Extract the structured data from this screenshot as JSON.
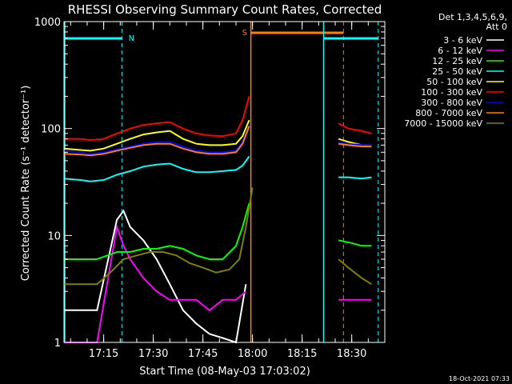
{
  "chart_data": {
    "type": "line",
    "title": "RHESSI Observing Summary Count Rates, Corrected",
    "xlabel": "Start Time (08-May-03 17:03:02)",
    "ylabel": "Corrected Count Rate (s⁻¹ detector⁻¹)",
    "yscale": "log",
    "ylim": [
      1,
      1000
    ],
    "xlim_minutes": [
      0,
      97
    ],
    "x_ticks": [
      {
        "label": "17:15",
        "min": 12
      },
      {
        "label": "17:30",
        "min": 27
      },
      {
        "label": "17:45",
        "min": 42
      },
      {
        "label": "18:00",
        "min": 57
      },
      {
        "label": "18:15",
        "min": 72
      },
      {
        "label": "18:30",
        "min": 87
      }
    ],
    "y_ticks": [
      {
        "label": "1",
        "value": 1
      },
      {
        "label": "10",
        "value": 10
      },
      {
        "label": "100",
        "value": 100
      },
      {
        "label": "1000",
        "value": 1000
      }
    ],
    "legend_header": [
      "Det 1,3,4,5,6,9,",
      "Att 0"
    ],
    "series": [
      {
        "name": "3 - 6 keV",
        "color": "#ffffff",
        "x": [
          0,
          10,
          16,
          18,
          20,
          24,
          28,
          32,
          36,
          40,
          44,
          48,
          52,
          55
        ],
        "y": [
          2.0,
          2.0,
          14,
          17,
          12,
          9,
          6,
          3.5,
          2.0,
          1.5,
          1.2,
          1.1,
          1.0,
          3.5
        ]
      },
      {
        "name": "6 - 12 keV",
        "color": "#ff00ff",
        "x": [
          0,
          10,
          16,
          18,
          20,
          24,
          28,
          32,
          36,
          40,
          44,
          48,
          52,
          55,
          83,
          87,
          90,
          93
        ],
        "y": [
          1.0,
          1.0,
          12,
          8,
          6,
          4,
          3,
          2.5,
          2.5,
          2.5,
          2.0,
          2.5,
          2.5,
          3.0,
          2.5,
          2.5,
          2.5,
          2.5
        ]
      },
      {
        "name": "12 - 25 keV",
        "color": "#00ff00",
        "x": [
          0,
          10,
          16,
          20,
          24,
          28,
          32,
          36,
          40,
          44,
          48,
          52,
          54,
          56,
          83,
          87,
          90,
          93
        ],
        "y": [
          6.0,
          6.0,
          7.0,
          7.0,
          7.5,
          7.5,
          8.0,
          7.5,
          6.5,
          6.0,
          6.0,
          8.0,
          12,
          20,
          9.0,
          8.5,
          8.0,
          8.0
        ]
      },
      {
        "name": "25 - 50 keV",
        "color": "#00ffff",
        "x": [
          0,
          5,
          8,
          12,
          16,
          20,
          24,
          28,
          32,
          36,
          40,
          44,
          48,
          52,
          54,
          56,
          83,
          86,
          90,
          93
        ],
        "y": [
          34,
          33,
          32,
          33,
          37,
          40,
          44,
          46,
          47,
          42,
          39,
          39,
          40,
          41,
          45,
          55,
          35,
          35,
          34,
          35
        ]
      },
      {
        "name": "50 - 100 keV",
        "color": "#ffff00",
        "x": [
          0,
          5,
          8,
          12,
          16,
          20,
          24,
          28,
          32,
          36,
          40,
          44,
          48,
          52,
          54,
          56,
          83,
          86,
          90,
          93
        ],
        "y": [
          65,
          63,
          62,
          65,
          72,
          80,
          88,
          92,
          95,
          80,
          72,
          70,
          70,
          72,
          85,
          120,
          80,
          75,
          70,
          70
        ]
      },
      {
        "name": "100 - 300 keV",
        "color": "#ff0000",
        "x": [
          0,
          5,
          8,
          12,
          16,
          20,
          24,
          28,
          32,
          36,
          40,
          44,
          48,
          52,
          54,
          56,
          83,
          86,
          90,
          93
        ],
        "y": [
          80,
          80,
          78,
          80,
          90,
          100,
          108,
          112,
          115,
          100,
          90,
          86,
          85,
          90,
          120,
          200,
          112,
          100,
          95,
          90
        ]
      },
      {
        "name": "300 - 800 keV",
        "color": "#0000ff",
        "x": [
          0,
          5,
          8,
          12,
          16,
          20,
          24,
          28,
          32,
          36,
          40,
          44,
          48,
          52,
          54,
          56,
          83,
          86,
          90,
          93
        ],
        "y": [
          62,
          60,
          58,
          60,
          64,
          68,
          72,
          75,
          75,
          68,
          62,
          60,
          60,
          62,
          75,
          110,
          75,
          72,
          70,
          70
        ]
      },
      {
        "name": "800 - 7000 keV",
        "color": "#ff8000",
        "x": [
          0,
          5,
          8,
          12,
          16,
          20,
          24,
          28,
          32,
          36,
          40,
          44,
          48,
          52,
          54,
          56,
          83,
          86,
          90,
          93
        ],
        "y": [
          58,
          57,
          56,
          58,
          62,
          66,
          70,
          72,
          72,
          65,
          60,
          58,
          58,
          60,
          72,
          105,
          72,
          70,
          68,
          68
        ]
      },
      {
        "name": "7000 - 15000 keV",
        "color": "#808000",
        "x": [
          0,
          10,
          14,
          18,
          22,
          26,
          30,
          34,
          38,
          42,
          46,
          50,
          53,
          55,
          57,
          83,
          86,
          90,
          93
        ],
        "y": [
          3.5,
          3.5,
          4.5,
          6.0,
          6.5,
          7.0,
          7.0,
          6.5,
          5.5,
          5.0,
          4.5,
          4.8,
          6,
          12,
          28,
          6.0,
          5.0,
          4.0,
          3.5
        ]
      }
    ],
    "annotations": [
      {
        "label": "N",
        "color": "#00ffff"
      },
      {
        "label": "S",
        "color": "#ff8000"
      }
    ]
  },
  "timestamp": "18-Oct-2021 07:33"
}
